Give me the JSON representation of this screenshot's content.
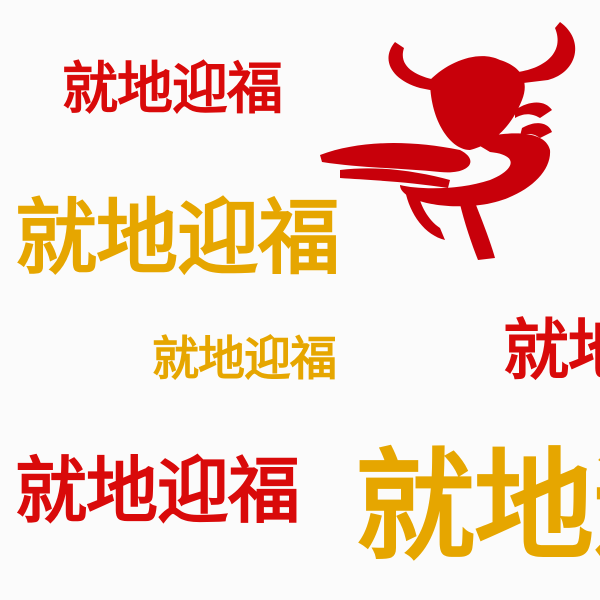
{
  "texts": [
    "就地迎福",
    "就地迎福",
    "就地迎福",
    "就地迎福",
    "就地迎福",
    "就地迎福"
  ]
}
